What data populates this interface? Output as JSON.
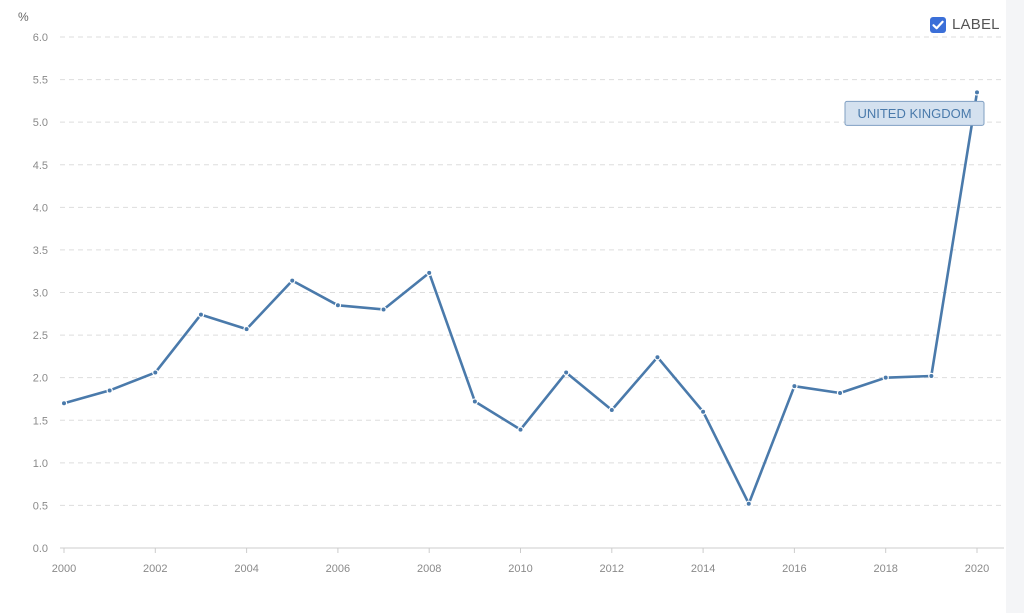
{
  "unit_label": "%",
  "label_toggle": {
    "text": "LABEL",
    "checked": true,
    "color": "#3b6fd8"
  },
  "colors": {
    "line": "#4a7aab",
    "grid": "#dddddd",
    "tag_fill": "#d4e1ef",
    "tag_stroke": "#7f9fc2",
    "tag_text": "#4a7aab"
  },
  "chart_data": {
    "type": "line",
    "title": "",
    "xlabel": "",
    "ylabel": "%",
    "xlim": [
      2000,
      2020
    ],
    "ylim": [
      0,
      6
    ],
    "x_ticks": [
      "2000",
      "2002",
      "2004",
      "2006",
      "2008",
      "2010",
      "2012",
      "2014",
      "2016",
      "2018",
      "2020"
    ],
    "y_ticks": [
      "0.0",
      "0.5",
      "1.0",
      "1.5",
      "2.0",
      "2.5",
      "3.0",
      "3.5",
      "4.0",
      "4.5",
      "5.0",
      "5.5",
      "6.0"
    ],
    "grid": true,
    "series": [
      {
        "name": "UNITED KINGDOM",
        "x": [
          2000,
          2001,
          2002,
          2003,
          2004,
          2005,
          2006,
          2007,
          2008,
          2009,
          2010,
          2011,
          2012,
          2013,
          2014,
          2015,
          2016,
          2017,
          2018,
          2019,
          2020
        ],
        "values": [
          1.7,
          1.85,
          2.06,
          2.74,
          2.57,
          3.14,
          2.85,
          2.8,
          3.23,
          1.72,
          1.39,
          2.06,
          1.62,
          2.24,
          1.6,
          0.52,
          1.9,
          1.82,
          2.0,
          2.02,
          5.35
        ]
      }
    ]
  }
}
